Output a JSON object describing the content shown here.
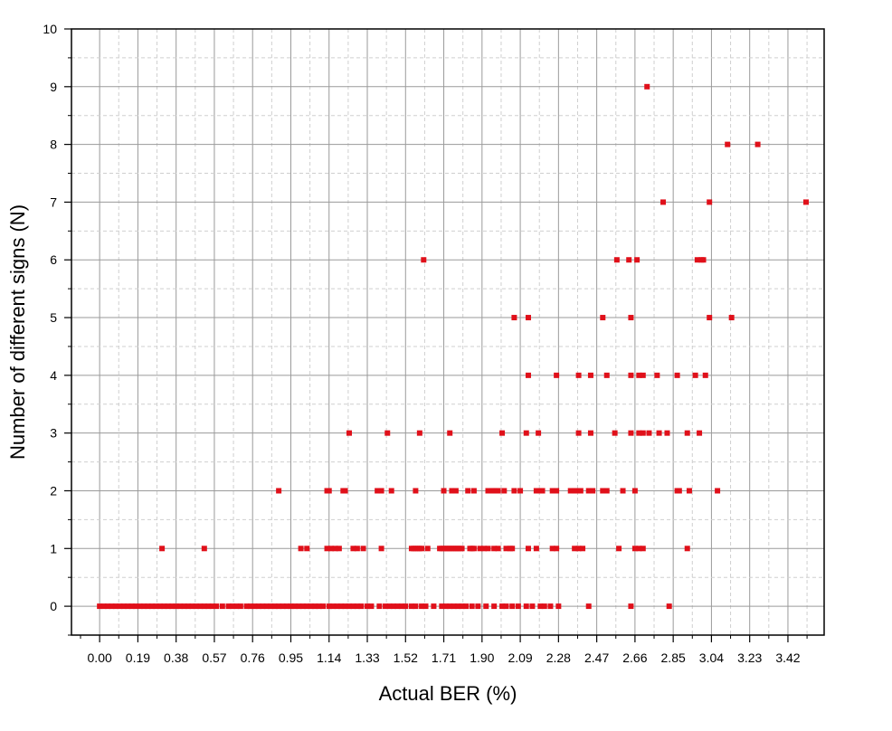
{
  "chart_data": {
    "type": "scatter",
    "title": "",
    "xlabel": "Actual BER (%)",
    "ylabel": "Number of different signs (N)",
    "xlim": [
      -0.14,
      3.6
    ],
    "ylim": [
      -0.5,
      10
    ],
    "x_ticks": [
      "0.00",
      "0.19",
      "0.38",
      "0.57",
      "0.76",
      "0.95",
      "1.14",
      "1.33",
      "1.52",
      "1.71",
      "1.90",
      "2.09",
      "2.28",
      "2.47",
      "2.66",
      "2.85",
      "3.04",
      "3.23",
      "3.42"
    ],
    "y_ticks": [
      "0",
      "1",
      "2",
      "3",
      "4",
      "5",
      "6",
      "7",
      "8",
      "9",
      "10"
    ],
    "grid": true,
    "marker_color": "#e0101a",
    "series": [
      {
        "points": [
          [
            0.0,
            0
          ],
          [
            0.02,
            0
          ],
          [
            0.04,
            0
          ],
          [
            0.06,
            0
          ],
          [
            0.08,
            0
          ],
          [
            0.1,
            0
          ],
          [
            0.12,
            0
          ],
          [
            0.14,
            0
          ],
          [
            0.16,
            0
          ],
          [
            0.18,
            0
          ],
          [
            0.2,
            0
          ],
          [
            0.22,
            0
          ],
          [
            0.24,
            0
          ],
          [
            0.26,
            0
          ],
          [
            0.28,
            0
          ],
          [
            0.3,
            0
          ],
          [
            0.32,
            0
          ],
          [
            0.34,
            0
          ],
          [
            0.36,
            0
          ],
          [
            0.38,
            0
          ],
          [
            0.4,
            0
          ],
          [
            0.42,
            0
          ],
          [
            0.44,
            0
          ],
          [
            0.46,
            0
          ],
          [
            0.48,
            0
          ],
          [
            0.5,
            0
          ],
          [
            0.52,
            0
          ],
          [
            0.54,
            0
          ],
          [
            0.56,
            0
          ],
          [
            0.58,
            0
          ],
          [
            0.61,
            0
          ],
          [
            0.64,
            0
          ],
          [
            0.66,
            0
          ],
          [
            0.68,
            0
          ],
          [
            0.7,
            0
          ],
          [
            0.73,
            0
          ],
          [
            0.75,
            0
          ],
          [
            0.77,
            0
          ],
          [
            0.79,
            0
          ],
          [
            0.81,
            0
          ],
          [
            0.83,
            0
          ],
          [
            0.85,
            0
          ],
          [
            0.87,
            0
          ],
          [
            0.89,
            0
          ],
          [
            0.91,
            0
          ],
          [
            0.93,
            0
          ],
          [
            0.95,
            0
          ],
          [
            0.97,
            0
          ],
          [
            0.99,
            0
          ],
          [
            1.01,
            0
          ],
          [
            1.03,
            0
          ],
          [
            1.05,
            0
          ],
          [
            1.07,
            0
          ],
          [
            1.09,
            0
          ],
          [
            1.11,
            0
          ],
          [
            1.14,
            0
          ],
          [
            1.16,
            0
          ],
          [
            1.18,
            0
          ],
          [
            1.2,
            0
          ],
          [
            1.22,
            0
          ],
          [
            1.24,
            0
          ],
          [
            1.26,
            0
          ],
          [
            1.28,
            0
          ],
          [
            1.3,
            0
          ],
          [
            1.33,
            0
          ],
          [
            1.35,
            0
          ],
          [
            1.39,
            0
          ],
          [
            1.42,
            0
          ],
          [
            1.44,
            0
          ],
          [
            1.46,
            0
          ],
          [
            1.48,
            0
          ],
          [
            1.5,
            0
          ],
          [
            1.52,
            0
          ],
          [
            1.55,
            0
          ],
          [
            1.57,
            0
          ],
          [
            1.6,
            0
          ],
          [
            1.62,
            0
          ],
          [
            1.66,
            0
          ],
          [
            1.7,
            0
          ],
          [
            1.72,
            0
          ],
          [
            1.74,
            0
          ],
          [
            1.76,
            0
          ],
          [
            1.78,
            0
          ],
          [
            1.8,
            0
          ],
          [
            1.82,
            0
          ],
          [
            1.85,
            0
          ],
          [
            1.88,
            0
          ],
          [
            1.92,
            0
          ],
          [
            1.96,
            0
          ],
          [
            2.0,
            0
          ],
          [
            2.02,
            0
          ],
          [
            2.05,
            0
          ],
          [
            2.08,
            0
          ],
          [
            2.12,
            0
          ],
          [
            2.15,
            0
          ],
          [
            2.19,
            0
          ],
          [
            2.21,
            0
          ],
          [
            2.24,
            0
          ],
          [
            2.28,
            0
          ],
          [
            2.43,
            0
          ],
          [
            2.64,
            0
          ],
          [
            2.83,
            0
          ],
          [
            0.31,
            1
          ],
          [
            0.52,
            1
          ],
          [
            1.0,
            1
          ],
          [
            1.03,
            1
          ],
          [
            1.13,
            1
          ],
          [
            1.15,
            1
          ],
          [
            1.17,
            1
          ],
          [
            1.19,
            1
          ],
          [
            1.26,
            1
          ],
          [
            1.28,
            1
          ],
          [
            1.31,
            1
          ],
          [
            1.4,
            1
          ],
          [
            1.55,
            1
          ],
          [
            1.56,
            1
          ],
          [
            1.57,
            1
          ],
          [
            1.58,
            1
          ],
          [
            1.59,
            1
          ],
          [
            1.6,
            1
          ],
          [
            1.63,
            1
          ],
          [
            1.69,
            1
          ],
          [
            1.7,
            1
          ],
          [
            1.71,
            1
          ],
          [
            1.72,
            1
          ],
          [
            1.73,
            1
          ],
          [
            1.74,
            1
          ],
          [
            1.75,
            1
          ],
          [
            1.76,
            1
          ],
          [
            1.77,
            1
          ],
          [
            1.78,
            1
          ],
          [
            1.79,
            1
          ],
          [
            1.8,
            1
          ],
          [
            1.84,
            1
          ],
          [
            1.85,
            1
          ],
          [
            1.86,
            1
          ],
          [
            1.89,
            1
          ],
          [
            1.91,
            1
          ],
          [
            1.93,
            1
          ],
          [
            1.96,
            1
          ],
          [
            1.98,
            1
          ],
          [
            2.02,
            1
          ],
          [
            2.04,
            1
          ],
          [
            2.05,
            1
          ],
          [
            2.13,
            1
          ],
          [
            2.17,
            1
          ],
          [
            2.25,
            1
          ],
          [
            2.27,
            1
          ],
          [
            2.36,
            1
          ],
          [
            2.38,
            1
          ],
          [
            2.4,
            1
          ],
          [
            2.58,
            1
          ],
          [
            2.66,
            1
          ],
          [
            2.68,
            1
          ],
          [
            2.7,
            1
          ],
          [
            2.92,
            1
          ],
          [
            0.89,
            2
          ],
          [
            1.13,
            2
          ],
          [
            1.14,
            2
          ],
          [
            1.21,
            2
          ],
          [
            1.22,
            2
          ],
          [
            1.38,
            2
          ],
          [
            1.4,
            2
          ],
          [
            1.45,
            2
          ],
          [
            1.57,
            2
          ],
          [
            1.71,
            2
          ],
          [
            1.75,
            2
          ],
          [
            1.77,
            2
          ],
          [
            1.83,
            2
          ],
          [
            1.86,
            2
          ],
          [
            1.93,
            2
          ],
          [
            1.95,
            2
          ],
          [
            1.96,
            2
          ],
          [
            1.97,
            2
          ],
          [
            1.98,
            2
          ],
          [
            2.01,
            2
          ],
          [
            2.06,
            2
          ],
          [
            2.09,
            2
          ],
          [
            2.17,
            2
          ],
          [
            2.19,
            2
          ],
          [
            2.2,
            2
          ],
          [
            2.25,
            2
          ],
          [
            2.27,
            2
          ],
          [
            2.34,
            2
          ],
          [
            2.36,
            2
          ],
          [
            2.37,
            2
          ],
          [
            2.39,
            2
          ],
          [
            2.43,
            2
          ],
          [
            2.45,
            2
          ],
          [
            2.5,
            2
          ],
          [
            2.52,
            2
          ],
          [
            2.6,
            2
          ],
          [
            2.66,
            2
          ],
          [
            2.87,
            2
          ],
          [
            2.88,
            2
          ],
          [
            2.93,
            2
          ],
          [
            3.07,
            2
          ],
          [
            1.24,
            3
          ],
          [
            1.43,
            3
          ],
          [
            1.59,
            3
          ],
          [
            1.74,
            3
          ],
          [
            2.0,
            3
          ],
          [
            2.12,
            3
          ],
          [
            2.18,
            3
          ],
          [
            2.38,
            3
          ],
          [
            2.44,
            3
          ],
          [
            2.56,
            3
          ],
          [
            2.64,
            3
          ],
          [
            2.68,
            3
          ],
          [
            2.7,
            3
          ],
          [
            2.73,
            3
          ],
          [
            2.78,
            3
          ],
          [
            2.82,
            3
          ],
          [
            2.92,
            3
          ],
          [
            2.98,
            3
          ],
          [
            2.13,
            4
          ],
          [
            2.27,
            4
          ],
          [
            2.38,
            4
          ],
          [
            2.44,
            4
          ],
          [
            2.52,
            4
          ],
          [
            2.64,
            4
          ],
          [
            2.68,
            4
          ],
          [
            2.7,
            4
          ],
          [
            2.77,
            4
          ],
          [
            2.87,
            4
          ],
          [
            2.96,
            4
          ],
          [
            3.01,
            4
          ],
          [
            2.06,
            5
          ],
          [
            2.13,
            5
          ],
          [
            2.5,
            5
          ],
          [
            2.64,
            5
          ],
          [
            3.03,
            5
          ],
          [
            3.14,
            5
          ],
          [
            1.61,
            6
          ],
          [
            2.57,
            6
          ],
          [
            2.63,
            6
          ],
          [
            2.67,
            6
          ],
          [
            2.97,
            6
          ],
          [
            2.99,
            6
          ],
          [
            3.0,
            6
          ],
          [
            2.8,
            7
          ],
          [
            3.03,
            7
          ],
          [
            3.51,
            7
          ],
          [
            3.12,
            8
          ],
          [
            3.27,
            8
          ],
          [
            2.72,
            9
          ]
        ]
      }
    ]
  }
}
